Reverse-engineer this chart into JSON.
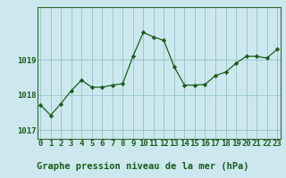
{
  "x": [
    0,
    1,
    2,
    3,
    4,
    5,
    6,
    7,
    8,
    9,
    10,
    11,
    12,
    13,
    14,
    15,
    16,
    17,
    18,
    19,
    20,
    21,
    22,
    23
  ],
  "y": [
    1017.72,
    1017.42,
    1017.75,
    1018.12,
    1018.42,
    1018.22,
    1018.22,
    1018.28,
    1018.32,
    1019.1,
    1019.78,
    1019.65,
    1019.55,
    1018.8,
    1018.28,
    1018.28,
    1018.3,
    1018.55,
    1018.65,
    1018.9,
    1019.1,
    1019.1,
    1019.05,
    1019.3
  ],
  "line_color": "#1a5c1a",
  "marker": "D",
  "marker_size": 2.2,
  "bg_color": "#cce8ee",
  "plot_bg": "#cce8ee",
  "grid_color": "#88bbbb",
  "xlabel": "Graphe pression niveau de la mer (hPa)",
  "xlabel_color": "#1a5c1a",
  "tick_color": "#1a5c1a",
  "bottom_bar_color": "#336633",
  "ylim": [
    1016.75,
    1020.5
  ],
  "yticks": [
    1017,
    1018,
    1019
  ],
  "xlim": [
    -0.3,
    23.3
  ],
  "border_color": "#336633",
  "tick_fontsize": 6.5,
  "xlabel_fontsize": 7.5
}
